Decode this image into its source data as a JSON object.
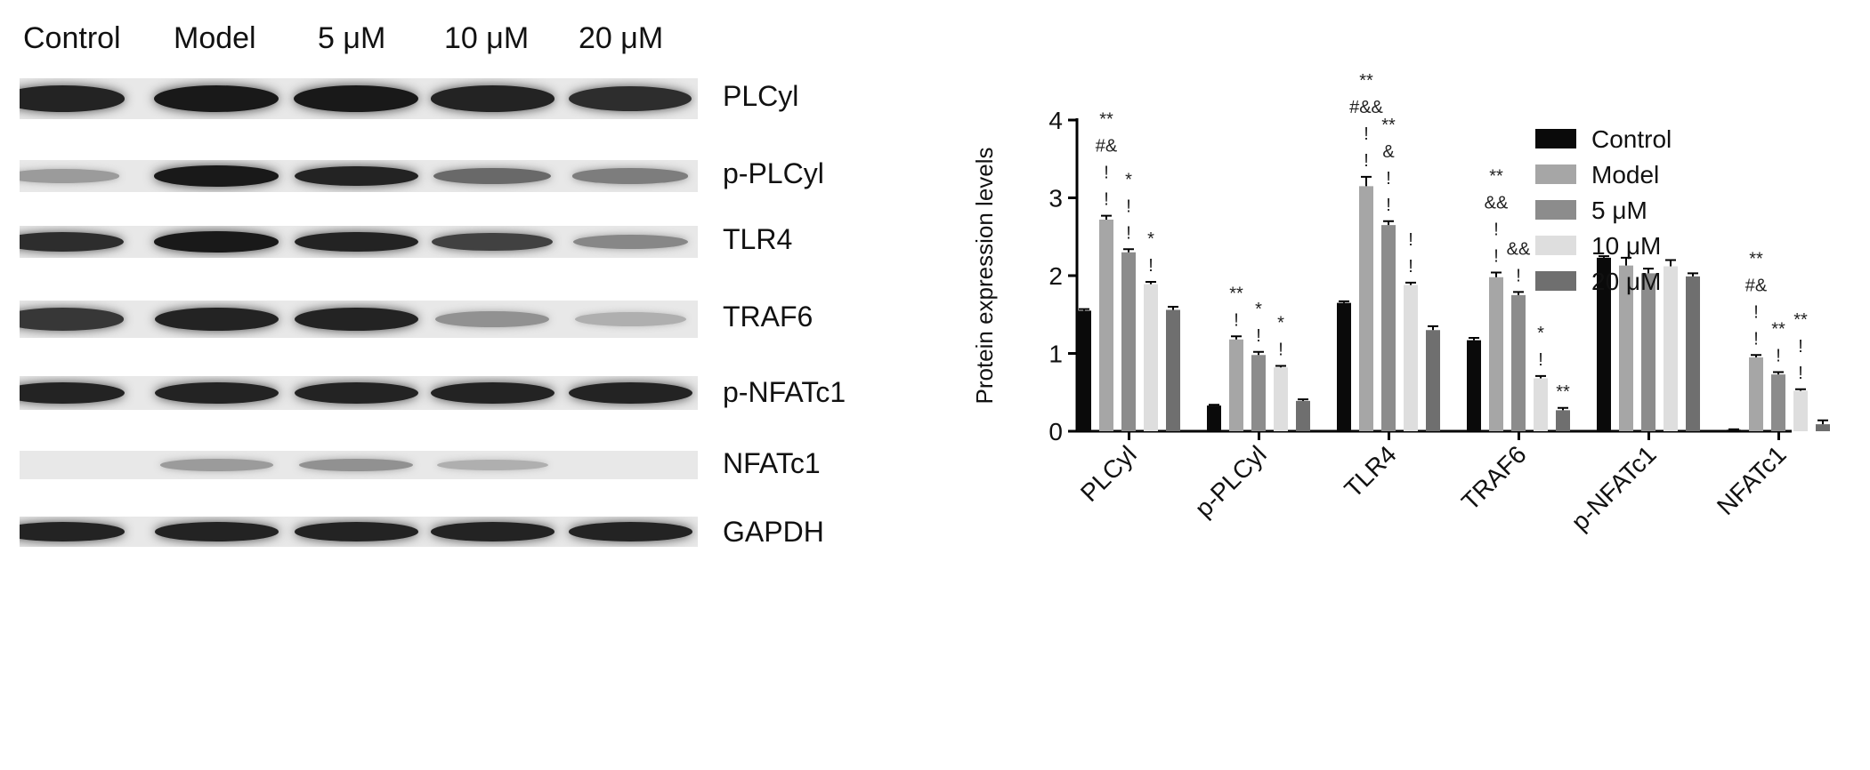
{
  "blot": {
    "lanes": [
      "Control",
      "Model",
      "5 μM",
      "10 μM",
      "20 μM"
    ],
    "proteins": [
      "PLCyl",
      "p-PLCyl",
      "TLR4",
      "TRAF6",
      "p-NFATc1",
      "NFATc1",
      "GAPDH"
    ],
    "band_intensity": [
      [
        0.95,
        1.0,
        1.0,
        0.95,
        0.9
      ],
      [
        0.35,
        1.0,
        0.95,
        0.6,
        0.5
      ],
      [
        0.9,
        1.0,
        0.95,
        0.8,
        0.45
      ],
      [
        0.85,
        0.95,
        0.95,
        0.4,
        0.25
      ],
      [
        0.95,
        0.95,
        0.95,
        0.95,
        0.95
      ],
      [
        0.0,
        0.35,
        0.4,
        0.25,
        0.0
      ],
      [
        0.95,
        0.95,
        0.95,
        0.95,
        0.95
      ]
    ]
  },
  "chart_data": {
    "type": "bar",
    "title": "",
    "xlabel": "",
    "ylabel": "Protein expression levels",
    "ylim": [
      0,
      4
    ],
    "yticks": [
      "0",
      "1",
      "2",
      "3",
      "4"
    ],
    "categories": [
      "PLCyl",
      "p-PLCyl",
      "TLR4",
      "TRAF6",
      "p-NFATc1",
      "NFATc1"
    ],
    "series": [
      {
        "name": "Control",
        "color": "#0a0a0a",
        "values": [
          1.55,
          0.33,
          1.65,
          1.17,
          2.23,
          0.02
        ],
        "errors": [
          0.02,
          0.01,
          0.02,
          0.03,
          0.02,
          0.005
        ]
      },
      {
        "name": "Model",
        "color": "#a6a6a6",
        "values": [
          2.72,
          1.18,
          3.15,
          1.98,
          2.13,
          0.95
        ],
        "errors": [
          0.05,
          0.04,
          0.12,
          0.06,
          0.1,
          0.03
        ]
      },
      {
        "name": "5 μM",
        "color": "#8c8c8c",
        "values": [
          2.3,
          0.98,
          2.65,
          1.75,
          2.03,
          0.73
        ],
        "errors": [
          0.04,
          0.04,
          0.05,
          0.04,
          0.06,
          0.03
        ]
      },
      {
        "name": "10 μM",
        "color": "#dedede",
        "values": [
          1.89,
          0.82,
          1.88,
          0.68,
          2.12,
          0.52
        ],
        "errors": [
          0.03,
          0.02,
          0.03,
          0.03,
          0.08,
          0.02
        ]
      },
      {
        "name": "20 μM",
        "color": "#6f6f6f",
        "values": [
          1.56,
          0.39,
          1.3,
          0.27,
          1.99,
          0.09
        ],
        "errors": [
          0.04,
          0.02,
          0.05,
          0.03,
          0.04,
          0.05
        ]
      }
    ],
    "legend_placement": "right",
    "grid": false,
    "significance": [
      [
        "",
        "** #& ! !",
        "* ! !",
        "* !",
        ""
      ],
      [
        "",
        "** !",
        "* !",
        "* !",
        ""
      ],
      [
        "",
        "** #&& ! !",
        "** & ! !",
        "! !",
        ""
      ],
      [
        "",
        "** && ! !",
        "&& !",
        "* !",
        "**"
      ],
      [
        "",
        "",
        "",
        "",
        ""
      ],
      [
        "",
        "** #& ! !",
        "** !",
        "** ! !",
        ""
      ]
    ]
  }
}
